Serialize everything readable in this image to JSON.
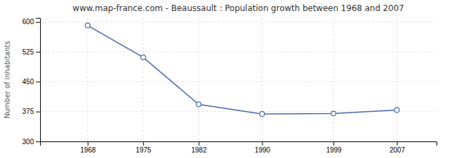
{
  "chart_data": {
    "type": "line",
    "title": "www.map-france.com - Beaussault : Population growth between 1968 and 2007",
    "y_label": "Number of inhabitants",
    "x": [
      1968,
      1975,
      1982,
      1990,
      1999,
      2007
    ],
    "values": [
      591,
      511,
      393,
      369,
      370,
      379
    ],
    "color": "#4466aa",
    "marker": "circle",
    "xlim": [
      1962,
      2012
    ],
    "xticks": [
      1968,
      1975,
      1982,
      1990,
      1999,
      2007
    ],
    "ylim": [
      300,
      610
    ],
    "yticks": [
      300,
      375,
      450,
      525,
      600
    ],
    "grid": true
  }
}
